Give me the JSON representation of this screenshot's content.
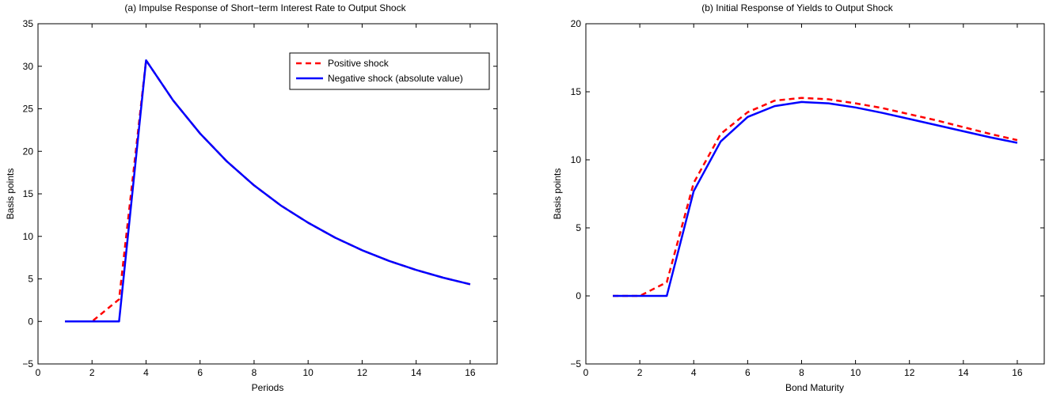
{
  "chart_data": [
    {
      "type": "line",
      "title": "(a) Impulse Response of Short−term Interest Rate to Output Shock",
      "xlabel": "Periods",
      "ylabel": "Basis points",
      "xlim": [
        0,
        17
      ],
      "ylim": [
        -5,
        35
      ],
      "xticks": [
        "0",
        "2",
        "4",
        "6",
        "8",
        "10",
        "12",
        "14",
        "16"
      ],
      "yticks": [
        "−5",
        "0",
        "5",
        "10",
        "15",
        "20",
        "25",
        "30",
        "35"
      ],
      "legend_position": "top-right",
      "grid": false,
      "x": [
        1,
        2,
        3,
        4,
        5,
        6,
        7,
        8,
        9,
        10,
        11,
        12,
        13,
        14,
        15,
        16
      ],
      "series": [
        {
          "name": "Positive shock",
          "color": "#ff0000",
          "style": "dashed",
          "values": [
            0,
            0,
            2.6,
            30.7,
            26.0,
            22.1,
            18.8,
            16.0,
            13.6,
            11.6,
            9.85,
            8.37,
            7.11,
            6.05,
            5.14,
            4.37
          ]
        },
        {
          "name": "Negative shock (absolute value)",
          "color": "#0000ff",
          "style": "solid",
          "values": [
            0,
            0,
            0,
            30.7,
            26.0,
            22.1,
            18.8,
            16.0,
            13.6,
            11.6,
            9.85,
            8.37,
            7.11,
            6.05,
            5.14,
            4.37
          ]
        }
      ]
    },
    {
      "type": "line",
      "title": "(b) Initial Response of Yields to Output Shock",
      "xlabel": "Bond Maturity",
      "ylabel": "Basis points",
      "xlim": [
        0,
        17
      ],
      "ylim": [
        -5,
        20
      ],
      "xticks": [
        "0",
        "2",
        "4",
        "6",
        "8",
        "10",
        "12",
        "14",
        "16"
      ],
      "yticks": [
        "−5",
        "0",
        "5",
        "10",
        "15",
        "20"
      ],
      "grid": false,
      "x": [
        1,
        2,
        3,
        4,
        5,
        6,
        7,
        8,
        9,
        10,
        11,
        12,
        13,
        14,
        15,
        16
      ],
      "series": [
        {
          "color": "#ff0000",
          "style": "dashed",
          "values": [
            0,
            0,
            1.0,
            8.3,
            11.9,
            13.5,
            14.35,
            14.55,
            14.45,
            14.15,
            13.8,
            13.35,
            12.9,
            12.4,
            11.9,
            11.45
          ]
        },
        {
          "color": "#0000ff",
          "style": "solid",
          "values": [
            0,
            0,
            0,
            7.7,
            11.35,
            13.15,
            13.95,
            14.25,
            14.15,
            13.85,
            13.45,
            13.0,
            12.55,
            12.1,
            11.65,
            11.25
          ]
        }
      ]
    }
  ]
}
